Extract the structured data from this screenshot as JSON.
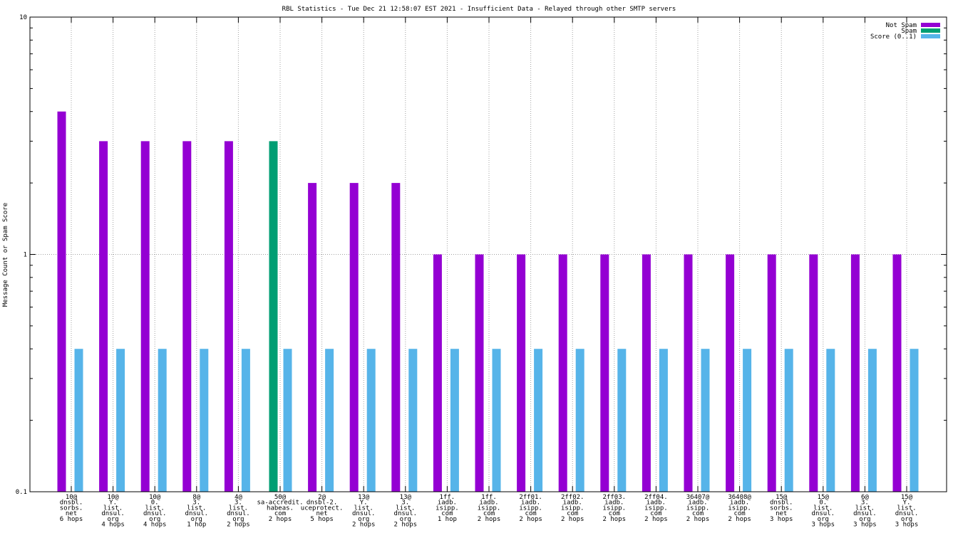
{
  "chart_data": {
    "type": "bar",
    "title": "RBL Statistics - Tue Dec 21 12:58:07 EST 2021 - Insufficient Data - Relayed through other SMTP servers",
    "ylabel": "Message Count or Spam Score",
    "xlabel": "",
    "yscale": "log",
    "ylim": [
      0.1,
      10
    ],
    "yticks": [
      {
        "value": 10,
        "label": "10"
      },
      {
        "value": 1,
        "label": "1"
      },
      {
        "value": 0.1,
        "label": "0.1"
      }
    ],
    "grid": true,
    "legend_position": "top-right",
    "categories": [
      [
        "10@",
        "dnsbl.",
        "sorbs.",
        "net",
        "6 hops"
      ],
      [
        "10@",
        "Y.",
        "list.",
        "dnsul.",
        "org",
        "4 hops"
      ],
      [
        "10@",
        "0.",
        "list.",
        "dnsul.",
        "org",
        "4 hops"
      ],
      [
        "8@",
        "3.",
        "list.",
        "dnsul.",
        "org",
        "1 hop"
      ],
      [
        "4@",
        "3.",
        "list.",
        "dnsul.",
        "org",
        "2 hops"
      ],
      [
        "50@",
        "sa-accredit.",
        "habeas.",
        "com",
        "2 hops"
      ],
      [
        "2@",
        "dnsbl-2.",
        "uceprotect.",
        "net",
        "5 hops"
      ],
      [
        "13@",
        "Y.",
        "list.",
        "dnsul.",
        "org",
        "2 hops"
      ],
      [
        "13@",
        "3.",
        "list.",
        "dnsul.",
        "org",
        "2 hops"
      ],
      [
        "1ff.",
        "iadb.",
        "isipp.",
        "com",
        "1 hop"
      ],
      [
        "1ff.",
        "iadb.",
        "isipp.",
        "com",
        "2 hops"
      ],
      [
        "2ff01.",
        "iadb.",
        "isipp.",
        "com",
        "2 hops"
      ],
      [
        "2ff02.",
        "iadb.",
        "isipp.",
        "com",
        "2 hops"
      ],
      [
        "2ff03.",
        "iadb.",
        "isipp.",
        "com",
        "2 hops"
      ],
      [
        "2ff04.",
        "iadb.",
        "isipp.",
        "com",
        "2 hops"
      ],
      [
        "36407@",
        "iadb.",
        "isipp.",
        "com",
        "2 hops"
      ],
      [
        "36408@",
        "iadb.",
        "isipp.",
        "com",
        "2 hops"
      ],
      [
        "15@",
        "dnsbl.",
        "sorbs.",
        "net",
        "3 hops"
      ],
      [
        "15@",
        "0.",
        "list.",
        "dnsul.",
        "org",
        "3 hops"
      ],
      [
        "6@",
        "3.",
        "list.",
        "dnsul.",
        "org",
        "3 hops"
      ],
      [
        "15@",
        "Y.",
        "list.",
        "dnsul.",
        "org",
        "3 hops"
      ]
    ],
    "series": [
      {
        "name": "Not Spam",
        "color": "#9400d3",
        "values": [
          4,
          3,
          3,
          3,
          3,
          0,
          2,
          2,
          2,
          1,
          1,
          1,
          1,
          1,
          1,
          1,
          1,
          1,
          1,
          1,
          1
        ]
      },
      {
        "name": "Spam",
        "color": "#009e73",
        "values": [
          0,
          0,
          0,
          0,
          0,
          3,
          0,
          0,
          0,
          0,
          0,
          0,
          0,
          0,
          0,
          0,
          0,
          0,
          0,
          0,
          0
        ]
      },
      {
        "name": "Score (0..1)",
        "color": "#56b4e9",
        "values": [
          0.4,
          0.4,
          0.4,
          0.4,
          0.4,
          0.4,
          0.4,
          0.4,
          0.4,
          0.4,
          0.4,
          0.4,
          0.4,
          0.4,
          0.4,
          0.4,
          0.4,
          0.4,
          0.4,
          0.4,
          0.4
        ]
      }
    ]
  }
}
